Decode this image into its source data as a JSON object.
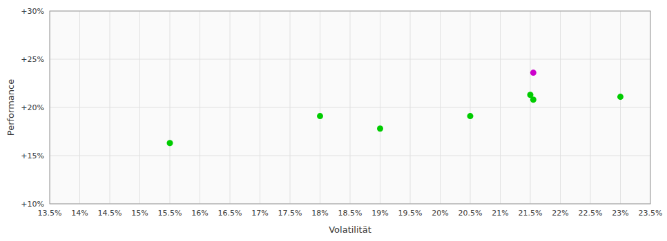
{
  "chart_data": {
    "type": "scatter",
    "x_label": "Volatilität",
    "y_label": "Performance",
    "x": [
      0.155,
      0.18,
      0.19,
      0.205,
      0.215,
      0.2155,
      0.2155,
      0.23
    ],
    "values": [
      0.163,
      0.191,
      0.178,
      0.191,
      0.213,
      0.208,
      0.236,
      0.211
    ],
    "colors": [
      "#00cc00",
      "#00cc00",
      "#00cc00",
      "#00cc00",
      "#00cc00",
      "#00cc00",
      "#cc00cc",
      "#00cc00"
    ],
    "xlim": [
      0.135,
      0.235
    ],
    "ylim": [
      0.1,
      0.3
    ],
    "xticks": [
      {
        "value": 0.135,
        "label": "13.5%"
      },
      {
        "value": 0.14,
        "label": "14%"
      },
      {
        "value": 0.145,
        "label": "14.5%"
      },
      {
        "value": 0.15,
        "label": "15%"
      },
      {
        "value": 0.155,
        "label": "15.5%"
      },
      {
        "value": 0.16,
        "label": "16%"
      },
      {
        "value": 0.165,
        "label": "16.5%"
      },
      {
        "value": 0.17,
        "label": "17%"
      },
      {
        "value": 0.175,
        "label": "17.5%"
      },
      {
        "value": 0.18,
        "label": "18%"
      },
      {
        "value": 0.185,
        "label": "18.5%"
      },
      {
        "value": 0.19,
        "label": "19%"
      },
      {
        "value": 0.195,
        "label": "19.5%"
      },
      {
        "value": 0.2,
        "label": "20%"
      },
      {
        "value": 0.205,
        "label": "20.5%"
      },
      {
        "value": 0.21,
        "label": "21%"
      },
      {
        "value": 0.215,
        "label": "21.5%"
      },
      {
        "value": 0.22,
        "label": "22%"
      },
      {
        "value": 0.225,
        "label": "22.5%"
      },
      {
        "value": 0.23,
        "label": "23%"
      },
      {
        "value": 0.235,
        "label": "23.5%"
      }
    ],
    "yticks": [
      {
        "value": 0.1,
        "label": "+10%"
      },
      {
        "value": 0.15,
        "label": "+15%"
      },
      {
        "value": 0.2,
        "label": "+20%"
      },
      {
        "value": 0.25,
        "label": "+25%"
      },
      {
        "value": 0.3,
        "label": "+30%"
      }
    ],
    "grid": true
  }
}
